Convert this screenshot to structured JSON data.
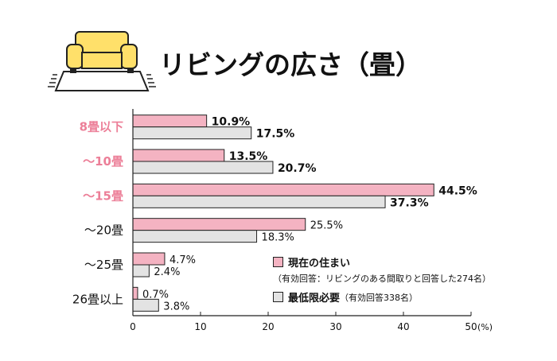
{
  "title": "リビングの広さ（畳）",
  "colors": {
    "current": "#f4b3c2",
    "minimum": "#e3e3e3",
    "highlight_label": "#ec7f98",
    "axis": "#222222"
  },
  "icon": "sofa-on-rug-icon",
  "chart_data": {
    "type": "bar",
    "orientation": "horizontal",
    "categories": [
      "8畳以下",
      "～10畳",
      "～15畳",
      "～20畳",
      "～25畳",
      "26畳以上"
    ],
    "highlighted_categories": [
      "8畳以下",
      "～10畳",
      "～15畳"
    ],
    "series": [
      {
        "name": "現在の住まい",
        "values": [
          10.9,
          13.5,
          44.5,
          25.5,
          4.7,
          0.7
        ],
        "labels": [
          "10.9%",
          "13.5%",
          "44.5%",
          "25.5%",
          "4.7%",
          "0.7%"
        ]
      },
      {
        "name": "最低限必要",
        "values": [
          17.5,
          20.7,
          37.3,
          18.3,
          2.4,
          3.8
        ],
        "labels": [
          "17.5%",
          "20.7%",
          "37.3%",
          "18.3%",
          "2.4%",
          "3.8%"
        ]
      }
    ],
    "bold_value_categories": [
      "8畳以下",
      "～10畳",
      "～15畳"
    ],
    "xlim": [
      0,
      50
    ],
    "xticks": [
      "0",
      "10",
      "20",
      "30",
      "40",
      "50"
    ],
    "x_unit": "(%)",
    "grid": false,
    "legend": {
      "position": "bottom-right",
      "items": [
        {
          "name": "現在の住まい",
          "note": ""
        },
        {
          "name": "最低限必要",
          "note": "（有効回答338名）"
        }
      ],
      "current_sub": "（有効回答：リビングのある間取りと回答した274名）"
    }
  }
}
